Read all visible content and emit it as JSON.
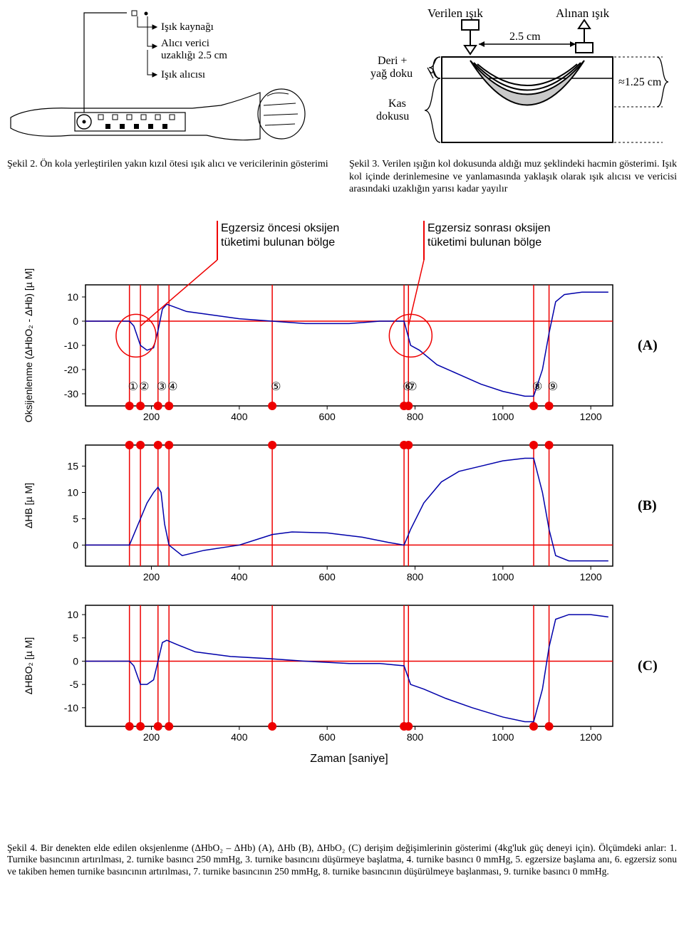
{
  "fig2": {
    "labels": {
      "isik_kaynagi": "Işık kaynağı",
      "alici_verici": "Alıcı verici",
      "uzakligi": "uzaklığı 2.5 cm",
      "isik_alicisi": "Işık alıcısı"
    },
    "caption": "Şekil 2. Ön kola yerleştirilen yakın kızıl ötesi ışık alıcı ve vericilerinin gösterimi"
  },
  "fig3": {
    "labels": {
      "verilen": "Verilen ışık",
      "alinan": "Alınan ışık",
      "spacing": "2.5 cm",
      "deri": "Deri +",
      "yag": "yağ doku",
      "kas": "Kas",
      "dokusu": "dokusu",
      "depth": "≈1.25 cm"
    },
    "caption": "Şekil 3. Verilen ışığın kol dokusunda aldığı muz şeklindeki hacmin gösterimi. Işık kol içinde derinlemesine ve yanlamasında yaklaşık olarak ışık alıcısı ve vericisi arasındaki uzaklığın yarısı kadar yayılır"
  },
  "annotations": {
    "pre": "Egzersiz öncesi oksijen tüketimi bulunan bölge",
    "post": "Egzersiz sonrası oksijen tüketimi bulunan bölge"
  },
  "charts": {
    "xlabel": "Zaman [saniye]",
    "xticks": [
      200,
      400,
      600,
      800,
      1000,
      1200
    ],
    "xlim": [
      50,
      1250
    ],
    "markers_x": [
      150,
      175,
      215,
      240,
      475,
      775,
      785,
      1070,
      1105
    ],
    "marker_numbers": [
      "①",
      "②",
      "③",
      "④",
      "⑤",
      "⑥",
      "⑦",
      "⑧",
      "⑨"
    ],
    "line_color": "#0000aa",
    "marker_color": "#ee0000",
    "axis_color": "#000000",
    "tick_fontsize": 14,
    "panelA": {
      "ylabel": "Oksijenlenme (ΔHbO₂ - ΔHb) [µ M]",
      "yticks": [
        -30,
        -20,
        -10,
        0,
        10
      ],
      "ylim": [
        -35,
        15
      ],
      "letter": "(A)",
      "data": [
        [
          50,
          0
        ],
        [
          100,
          0
        ],
        [
          150,
          0
        ],
        [
          160,
          -2
        ],
        [
          175,
          -10
        ],
        [
          190,
          -12
        ],
        [
          205,
          -11
        ],
        [
          215,
          -4
        ],
        [
          225,
          5
        ],
        [
          235,
          7
        ],
        [
          250,
          6
        ],
        [
          280,
          4
        ],
        [
          320,
          3
        ],
        [
          400,
          1
        ],
        [
          475,
          0
        ],
        [
          550,
          -1
        ],
        [
          650,
          -1
        ],
        [
          720,
          0
        ],
        [
          775,
          0
        ],
        [
          790,
          -10
        ],
        [
          810,
          -12
        ],
        [
          850,
          -18
        ],
        [
          900,
          -22
        ],
        [
          950,
          -26
        ],
        [
          1000,
          -29
        ],
        [
          1050,
          -31
        ],
        [
          1070,
          -31
        ],
        [
          1090,
          -20
        ],
        [
          1105,
          -5
        ],
        [
          1120,
          8
        ],
        [
          1140,
          11
        ],
        [
          1180,
          12
        ],
        [
          1240,
          12
        ]
      ]
    },
    "panelB": {
      "ylabel": "ΔHB [µ M]",
      "yticks": [
        0,
        5,
        10,
        15
      ],
      "ylim": [
        -4,
        19
      ],
      "letter": "(B)",
      "data": [
        [
          50,
          0
        ],
        [
          100,
          0
        ],
        [
          150,
          0
        ],
        [
          160,
          2
        ],
        [
          175,
          5
        ],
        [
          190,
          8
        ],
        [
          205,
          10
        ],
        [
          215,
          11
        ],
        [
          222,
          10
        ],
        [
          230,
          4
        ],
        [
          240,
          0
        ],
        [
          270,
          -2
        ],
        [
          320,
          -1
        ],
        [
          400,
          0
        ],
        [
          475,
          2
        ],
        [
          520,
          2.5
        ],
        [
          600,
          2.3
        ],
        [
          680,
          1.5
        ],
        [
          740,
          0.5
        ],
        [
          775,
          0
        ],
        [
          790,
          3
        ],
        [
          820,
          8
        ],
        [
          860,
          12
        ],
        [
          900,
          14
        ],
        [
          950,
          15
        ],
        [
          1000,
          16
        ],
        [
          1050,
          16.5
        ],
        [
          1070,
          16.5
        ],
        [
          1090,
          10
        ],
        [
          1105,
          3
        ],
        [
          1120,
          -2
        ],
        [
          1150,
          -3
        ],
        [
          1200,
          -3
        ],
        [
          1240,
          -3
        ]
      ]
    },
    "panelC": {
      "ylabel": "ΔHBO₂ [µ M]",
      "yticks": [
        -10,
        -5,
        0,
        5,
        10
      ],
      "ylim": [
        -14,
        12
      ],
      "letter": "(C)",
      "data": [
        [
          50,
          0
        ],
        [
          100,
          0
        ],
        [
          150,
          0
        ],
        [
          160,
          -1
        ],
        [
          175,
          -5
        ],
        [
          190,
          -5
        ],
        [
          205,
          -4
        ],
        [
          215,
          0
        ],
        [
          225,
          4
        ],
        [
          235,
          4.5
        ],
        [
          260,
          3.5
        ],
        [
          300,
          2
        ],
        [
          380,
          1
        ],
        [
          475,
          0.5
        ],
        [
          550,
          0
        ],
        [
          650,
          -0.5
        ],
        [
          720,
          -0.5
        ],
        [
          775,
          -1
        ],
        [
          790,
          -5
        ],
        [
          820,
          -6
        ],
        [
          870,
          -8
        ],
        [
          930,
          -10
        ],
        [
          1000,
          -12
        ],
        [
          1050,
          -13
        ],
        [
          1070,
          -13
        ],
        [
          1090,
          -6
        ],
        [
          1105,
          3
        ],
        [
          1120,
          9
        ],
        [
          1150,
          10
        ],
        [
          1200,
          10
        ],
        [
          1240,
          9.5
        ]
      ]
    }
  },
  "fig4_caption": "Şekil 4. Bir denekten elde edilen oksjenlenme (ΔHbO₂ – ΔHb) (A), ΔHb (B), ΔHbO₂ (C) derişim değişimlerinin gösterimi (4kg'luk güç deneyi için). Ölçümdeki anlar: 1. Turnike basıncının artırılması, 2. turnike basıncı 250 mmHg, 3. turnike basıncını düşürmeye başlatma, 4. turnike basıncı 0 mmHg, 5. egzersize başlama anı, 6. egzersiz sonu ve takiben hemen turnike basıncının artırılması, 7. turnike basıncının 250 mmHg, 8. turnike basıncının düşürülmeye başlanması, 9. turnike basıncı 0 mmHg."
}
